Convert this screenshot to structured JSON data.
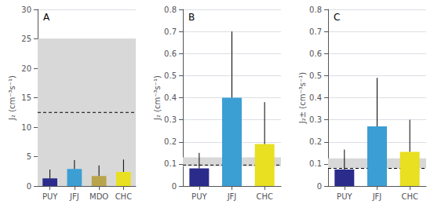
{
  "chart_data": [
    {
      "type": "bar",
      "annotation": "A",
      "categories": [
        "PUY",
        "JFJ",
        "MDO",
        "CHC"
      ],
      "values": [
        1.3,
        2.9,
        1.7,
        2.4
      ],
      "colors": [
        "#2b2b8c",
        "#3b9fd4",
        "#b8a44a",
        "#e8e020"
      ],
      "error_high": [
        1.5,
        1.5,
        1.8,
        2.1
      ],
      "ylim": [
        0,
        30
      ],
      "yticks": [
        0,
        5,
        10,
        15,
        20,
        25,
        30
      ],
      "ylabel": "J₂ (cm⁻³s⁻¹)",
      "reference_line": 12.5,
      "shaded_band": [
        0,
        25
      ],
      "grid": true
    },
    {
      "type": "bar",
      "annotation": "B",
      "categories": [
        "PUY",
        "JFJ",
        "CHC"
      ],
      "values": [
        0.08,
        0.4,
        0.19
      ],
      "colors": [
        "#2b2b8c",
        "#3b9fd4",
        "#e8e020"
      ],
      "error_high": [
        0.07,
        0.3,
        0.19
      ],
      "ylim": [
        0,
        0.8
      ],
      "yticks": [
        0,
        0.1,
        0.2,
        0.3,
        0.4,
        0.5,
        0.6,
        0.7,
        0.8
      ],
      "ylabel": "J₂ (cm⁻³s⁻¹)",
      "reference_line": 0.095,
      "shaded_band": [
        0.09,
        0.13
      ],
      "grid": true
    },
    {
      "type": "bar",
      "annotation": "C",
      "categories": [
        "PUY",
        "JFJ",
        "CHC"
      ],
      "values": [
        0.075,
        0.27,
        0.155
      ],
      "colors": [
        "#2b2b8c",
        "#3b9fd4",
        "#e8e020"
      ],
      "error_high": [
        0.09,
        0.22,
        0.145
      ],
      "ylim": [
        0,
        0.8
      ],
      "yticks": [
        0,
        0.1,
        0.2,
        0.3,
        0.4,
        0.5,
        0.6,
        0.7,
        0.8
      ],
      "ylabel": "J₂± (cm⁻³s⁻¹)",
      "reference_line": 0.08,
      "shaded_band": [
        0.08,
        0.125
      ],
      "grid": true
    }
  ]
}
